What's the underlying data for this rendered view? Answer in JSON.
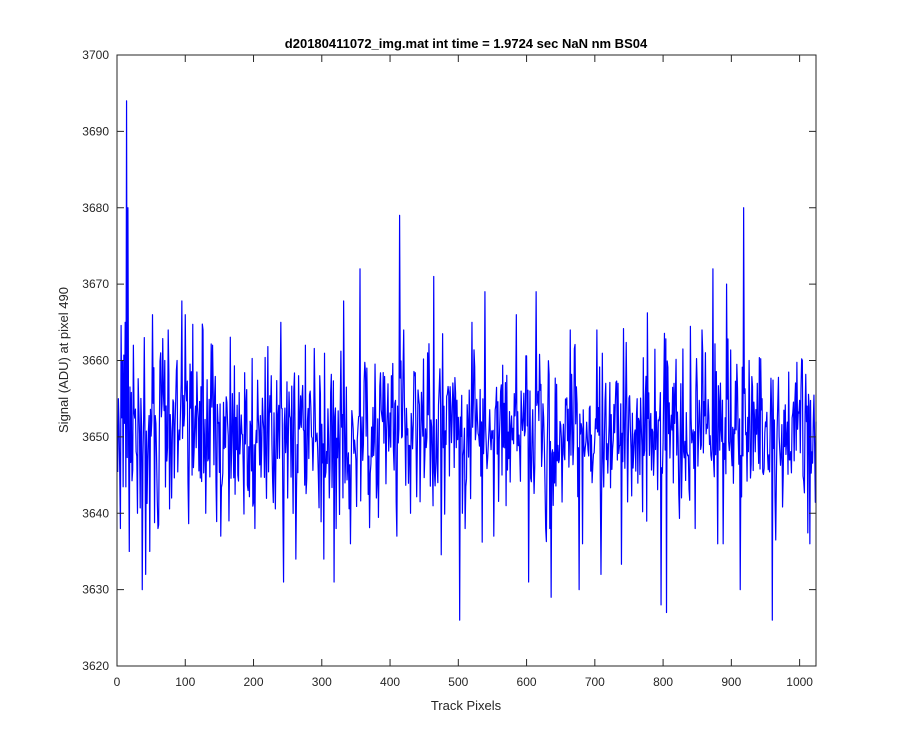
{
  "chart_data": {
    "type": "line",
    "title": "d20180411072_img.mat int time = 1.9724 sec  NaN nm BS04",
    "xlabel": "Track Pixels",
    "ylabel": "Signal (ADU) at pixel 490",
    "xlim": [
      0,
      1024
    ],
    "ylim": [
      3620,
      3700
    ],
    "xticks": [
      0,
      100,
      200,
      300,
      400,
      500,
      600,
      700,
      800,
      900,
      1000
    ],
    "yticks": [
      3620,
      3630,
      3640,
      3650,
      3660,
      3670,
      3680,
      3690,
      3700
    ],
    "grid": false,
    "legend": "none",
    "line_color": "#0000ff",
    "series": [
      {
        "x_start": 1,
        "x_step": 1,
        "mean": 3651,
        "std": 5.2,
        "points": 1024,
        "values_sample": [
          [
            2,
            3655
          ],
          [
            5,
            3638
          ],
          [
            8,
            3660
          ],
          [
            12,
            3665
          ],
          [
            14,
            3694
          ],
          [
            16,
            3680
          ],
          [
            18,
            3635
          ],
          [
            24,
            3662
          ],
          [
            30,
            3640
          ],
          [
            37,
            3630
          ],
          [
            40,
            3663
          ],
          [
            48,
            3635
          ],
          [
            52,
            3666
          ],
          [
            60,
            3638
          ],
          [
            64,
            3661
          ],
          [
            70,
            3660
          ],
          [
            75,
            3664
          ],
          [
            80,
            3642
          ],
          [
            88,
            3660
          ],
          [
            100,
            3666
          ],
          [
            110,
            3645
          ],
          [
            126,
            3664
          ],
          [
            130,
            3640
          ],
          [
            140,
            3662
          ],
          [
            152,
            3637
          ],
          [
            164,
            3639
          ],
          [
            181,
            3650
          ],
          [
            202,
            3638
          ],
          [
            226,
            3658
          ],
          [
            240,
            3665
          ],
          [
            244,
            3631
          ],
          [
            250,
            3642
          ],
          [
            262,
            3634
          ],
          [
            266,
            3658
          ],
          [
            276,
            3662
          ],
          [
            283,
            3656
          ],
          [
            297,
            3658
          ],
          [
            303,
            3634
          ],
          [
            318,
            3631
          ],
          [
            321,
            3638
          ],
          [
            333,
            3655
          ],
          [
            342,
            3636
          ],
          [
            356,
            3672
          ],
          [
            366,
            3659
          ],
          [
            380,
            3642
          ],
          [
            389,
            3652
          ],
          [
            402,
            3658
          ],
          [
            410,
            3637
          ],
          [
            414,
            3679
          ],
          [
            420,
            3664
          ],
          [
            430,
            3640
          ],
          [
            455,
            3661
          ],
          [
            464,
            3671
          ],
          [
            482,
            3649
          ],
          [
            493,
            3655
          ],
          [
            502,
            3626
          ],
          [
            506,
            3640
          ],
          [
            510,
            3638
          ],
          [
            520,
            3665
          ],
          [
            539,
            3669
          ],
          [
            552,
            3637
          ],
          [
            562,
            3656
          ],
          [
            570,
            3641
          ],
          [
            585,
            3666
          ],
          [
            592,
            3656
          ],
          [
            603,
            3631
          ],
          [
            614,
            3669
          ],
          [
            626,
            3649
          ],
          [
            634,
            3638
          ],
          [
            636,
            3629
          ],
          [
            648,
            3647
          ],
          [
            656,
            3647
          ],
          [
            664,
            3664
          ],
          [
            677,
            3630
          ],
          [
            682,
            3636
          ],
          [
            696,
            3644
          ],
          [
            703,
            3664
          ],
          [
            709,
            3632
          ],
          [
            716,
            3657
          ],
          [
            734,
            3657
          ],
          [
            745,
            3654
          ],
          [
            762,
            3655
          ],
          [
            784,
            3651
          ],
          [
            797,
            3628
          ],
          [
            805,
            3627
          ],
          [
            816,
            3657
          ],
          [
            822,
            3650
          ],
          [
            847,
            3638
          ],
          [
            857,
            3664
          ],
          [
            868,
            3649
          ],
          [
            873,
            3672
          ],
          [
            880,
            3636
          ],
          [
            888,
            3636
          ],
          [
            893,
            3670
          ],
          [
            904,
            3651
          ],
          [
            913,
            3630
          ],
          [
            918,
            3680
          ],
          [
            926,
            3660
          ],
          [
            938,
            3657
          ],
          [
            945,
            3655
          ],
          [
            960,
            3626
          ],
          [
            966,
            3645
          ],
          [
            970,
            3650
          ],
          [
            986,
            3647
          ],
          [
            997,
            3651
          ],
          [
            1004,
            3660
          ],
          [
            1010,
            3652
          ],
          [
            1015,
            3636
          ],
          [
            1020,
            3652
          ],
          [
            1024,
            3652
          ]
        ]
      }
    ]
  }
}
